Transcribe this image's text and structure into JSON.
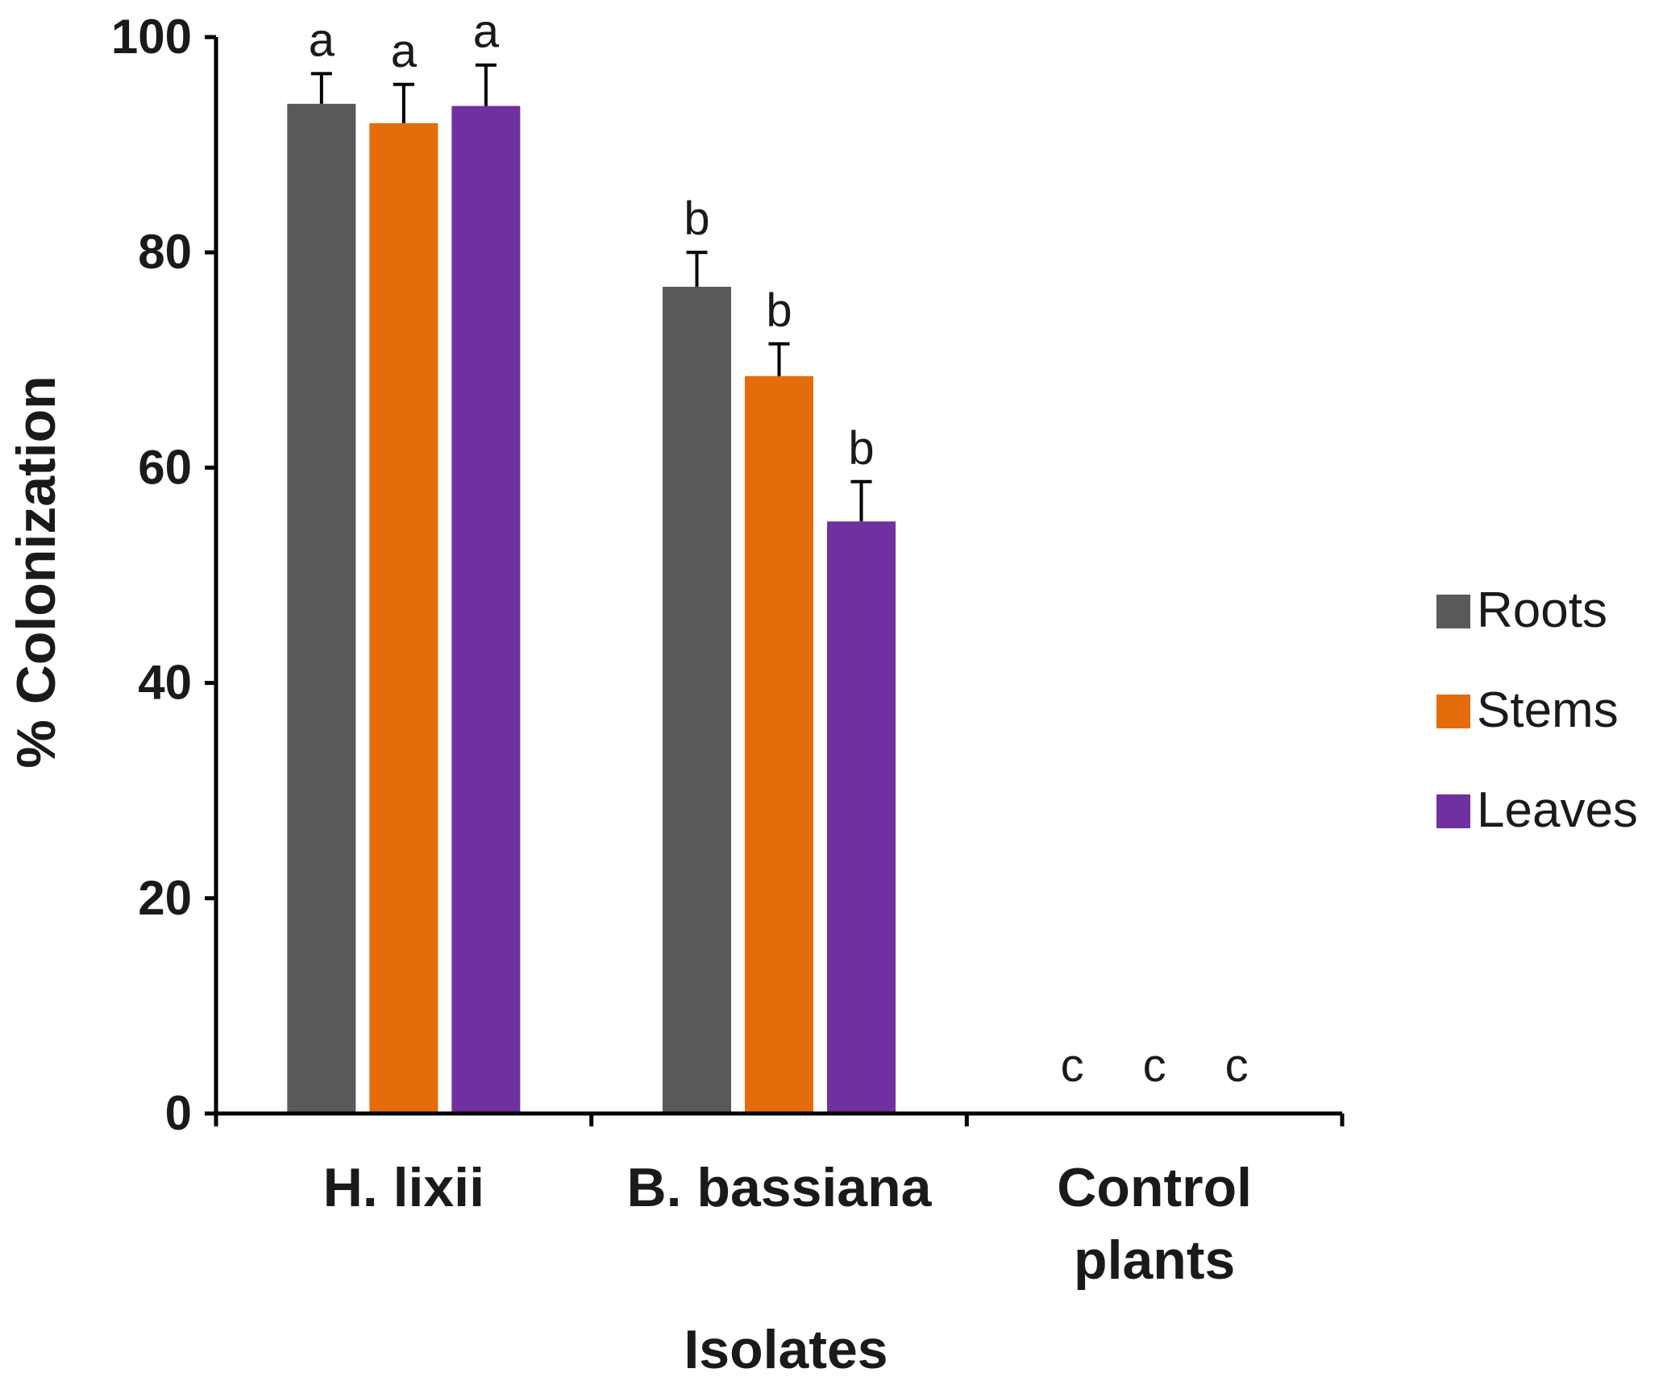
{
  "chart_data": {
    "type": "bar",
    "xlabel": "Isolates",
    "ylabel": "% Colonization",
    "ylim": [
      0,
      100
    ],
    "yticks": [
      "0",
      "20",
      "40",
      "60",
      "80",
      "100"
    ],
    "categories": [
      [
        "H. lixii"
      ],
      [
        "B. bassiana"
      ],
      [
        "Control",
        "plants"
      ]
    ],
    "series": [
      {
        "name": "Roots",
        "color": "#595959",
        "values": [
          93.8,
          76.8,
          0
        ],
        "errors": [
          2.8,
          3.2,
          0
        ],
        "letters": [
          "a",
          "b",
          "c"
        ]
      },
      {
        "name": "Stems",
        "color": "#E46C0A",
        "values": [
          92.0,
          68.5,
          0
        ],
        "errors": [
          3.6,
          3.0,
          0
        ],
        "letters": [
          "a",
          "b",
          "c"
        ]
      },
      {
        "name": "Leaves",
        "color": "#7030A0",
        "values": [
          93.6,
          55.0,
          0
        ],
        "errors": [
          3.8,
          3.7,
          0
        ],
        "letters": [
          "a",
          "b",
          "c"
        ]
      }
    ],
    "legend_position": "right",
    "grid": false
  }
}
